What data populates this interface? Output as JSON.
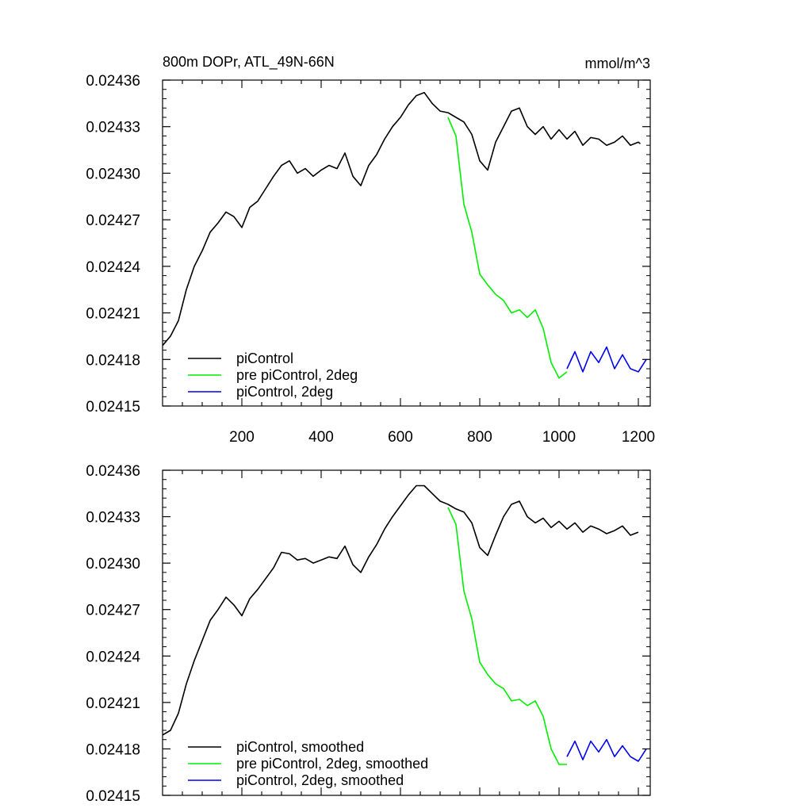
{
  "chart_data": [
    {
      "type": "line",
      "title_left": "800m DOPr, ATL_49N-66N",
      "title_right": "mmol/m^3",
      "xlim": [
        0,
        1230
      ],
      "ylim": [
        0.02415,
        0.02436
      ],
      "x_ticks": [
        200,
        400,
        600,
        800,
        1000,
        1200
      ],
      "x_tick_labels": [
        "200",
        "400",
        "600",
        "800",
        "1000",
        "1200"
      ],
      "y_ticks": [
        0.02415,
        0.02418,
        0.02421,
        0.02424,
        0.02427,
        0.0243,
        0.02433,
        0.02436
      ],
      "y_tick_labels": [
        "0.02415",
        "0.02418",
        "0.02421",
        "0.02424",
        "0.02427",
        "0.02430",
        "0.02433",
        "0.02436"
      ],
      "legend_position": "bottom-left",
      "series": [
        {
          "name": "piControl",
          "color": "#000000",
          "x": [
            0,
            20,
            40,
            60,
            80,
            100,
            120,
            140,
            160,
            180,
            200,
            220,
            240,
            260,
            280,
            300,
            320,
            340,
            360,
            380,
            400,
            420,
            440,
            460,
            480,
            500,
            520,
            540,
            560,
            580,
            600,
            620,
            640,
            660,
            680,
            700,
            720,
            740,
            760,
            780,
            800,
            820,
            840,
            860,
            880,
            900,
            920,
            940,
            960,
            980,
            1000,
            1020,
            1040,
            1060,
            1080,
            1100,
            1120,
            1140,
            1160,
            1180,
            1200,
            1205
          ],
          "y": [
            0.024189,
            0.024195,
            0.024205,
            0.024225,
            0.02424,
            0.02425,
            0.024262,
            0.024268,
            0.024275,
            0.024272,
            0.024265,
            0.024278,
            0.024282,
            0.02429,
            0.024298,
            0.024305,
            0.024308,
            0.0243,
            0.024303,
            0.024298,
            0.024302,
            0.024305,
            0.024303,
            0.024313,
            0.024298,
            0.024292,
            0.024305,
            0.024312,
            0.024322,
            0.02433,
            0.024336,
            0.024344,
            0.02435,
            0.024352,
            0.024345,
            0.02434,
            0.024339,
            0.024336,
            0.024333,
            0.024325,
            0.024308,
            0.024302,
            0.02432,
            0.02433,
            0.02434,
            0.024342,
            0.02433,
            0.024325,
            0.02433,
            0.024322,
            0.024328,
            0.024322,
            0.024327,
            0.024318,
            0.024323,
            0.024322,
            0.024318,
            0.02432,
            0.024324,
            0.024318,
            0.02432,
            0.024319
          ]
        },
        {
          "name": "pre piControl, 2deg",
          "color": "#00ee00",
          "x": [
            720,
            740,
            760,
            780,
            800,
            820,
            840,
            860,
            880,
            900,
            920,
            940,
            960,
            980,
            1000,
            1020
          ],
          "y": [
            0.024336,
            0.024324,
            0.02428,
            0.024262,
            0.024235,
            0.024228,
            0.024222,
            0.024218,
            0.02421,
            0.024212,
            0.024207,
            0.024212,
            0.0242,
            0.024178,
            0.024168,
            0.024172
          ]
        },
        {
          "name": "piControl, 2deg",
          "color": "#0000ee",
          "x": [
            1020,
            1040,
            1060,
            1080,
            1100,
            1120,
            1140,
            1160,
            1180,
            1200,
            1220
          ],
          "y": [
            0.024174,
            0.024185,
            0.024172,
            0.024185,
            0.024178,
            0.024188,
            0.024174,
            0.024183,
            0.024174,
            0.024172,
            0.02418
          ]
        }
      ]
    },
    {
      "type": "line",
      "xlim": [
        0,
        1230
      ],
      "ylim": [
        0.02415,
        0.02436
      ],
      "y_ticks": [
        0.02415,
        0.02418,
        0.02421,
        0.02424,
        0.02427,
        0.0243,
        0.02433,
        0.02436
      ],
      "y_tick_labels": [
        "0.02415",
        "0.02418",
        "0.02421",
        "0.02424",
        "0.02427",
        "0.02430",
        "0.02433",
        "0.02436"
      ],
      "legend_position": "bottom-left",
      "series": [
        {
          "name": "piControl, smoothed",
          "color": "#000000",
          "x": [
            0,
            20,
            40,
            60,
            80,
            100,
            120,
            140,
            160,
            180,
            200,
            220,
            240,
            260,
            280,
            300,
            320,
            340,
            360,
            380,
            400,
            420,
            440,
            460,
            480,
            500,
            520,
            540,
            560,
            580,
            600,
            620,
            640,
            660,
            680,
            700,
            720,
            740,
            760,
            780,
            800,
            820,
            840,
            860,
            880,
            900,
            920,
            940,
            960,
            980,
            1000,
            1020,
            1040,
            1060,
            1080,
            1100,
            1120,
            1140,
            1160,
            1180,
            1200
          ],
          "y": [
            0.024189,
            0.024192,
            0.024203,
            0.024222,
            0.024237,
            0.02425,
            0.024263,
            0.02427,
            0.024278,
            0.024273,
            0.024266,
            0.024277,
            0.024283,
            0.02429,
            0.024297,
            0.024307,
            0.024306,
            0.024302,
            0.024303,
            0.0243,
            0.024302,
            0.024304,
            0.024303,
            0.024311,
            0.024299,
            0.024294,
            0.024304,
            0.024312,
            0.024322,
            0.02433,
            0.024337,
            0.024344,
            0.02435,
            0.02435,
            0.024345,
            0.02434,
            0.024338,
            0.024335,
            0.024333,
            0.024326,
            0.02431,
            0.024305,
            0.024318,
            0.02433,
            0.024338,
            0.02434,
            0.02433,
            0.024326,
            0.024329,
            0.024323,
            0.024327,
            0.024322,
            0.024326,
            0.02432,
            0.024324,
            0.024322,
            0.024319,
            0.024321,
            0.024324,
            0.024318,
            0.02432
          ]
        },
        {
          "name": "pre piControl, 2deg, smoothed",
          "color": "#00ee00",
          "x": [
            720,
            740,
            760,
            780,
            800,
            820,
            840,
            860,
            880,
            900,
            920,
            940,
            960,
            980,
            1000,
            1020
          ],
          "y": [
            0.024336,
            0.024325,
            0.024282,
            0.024264,
            0.024236,
            0.024228,
            0.024222,
            0.024219,
            0.024211,
            0.024212,
            0.024208,
            0.024211,
            0.024201,
            0.02418,
            0.02417,
            0.02417
          ]
        },
        {
          "name": "piControl, 2deg, smoothed",
          "color": "#0000ee",
          "x": [
            1020,
            1040,
            1060,
            1080,
            1100,
            1120,
            1140,
            1160,
            1180,
            1200,
            1220
          ],
          "y": [
            0.024175,
            0.024185,
            0.024173,
            0.024185,
            0.024178,
            0.024186,
            0.024175,
            0.024182,
            0.024175,
            0.024172,
            0.02418
          ]
        }
      ]
    }
  ]
}
